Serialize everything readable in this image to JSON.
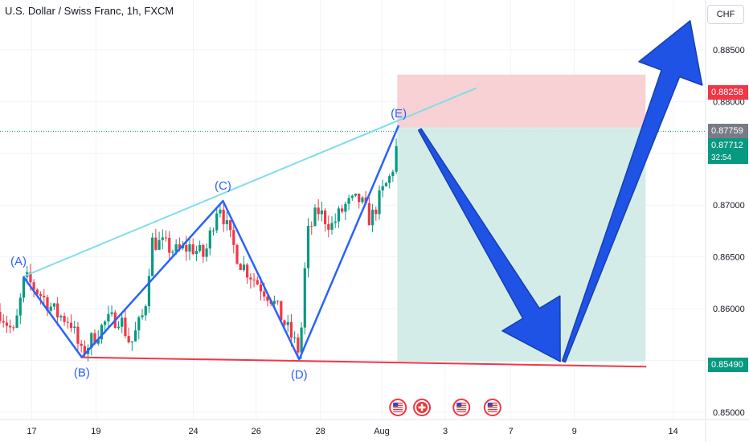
{
  "header": {
    "title": "U.S. Dollar / Swiss Franc, 1h, FXCM",
    "currency_button": "CHF"
  },
  "chart_data": {
    "type": "candlestick",
    "title": "U.S. Dollar / Swiss Franc, 1h, FXCM",
    "ylim": [
      0.8493,
      0.8898
    ],
    "xlim": [
      0,
      100
    ],
    "y_ticks": [
      "0.88500",
      "0.88000",
      "0.87500",
      "0.87000",
      "0.86500",
      "0.86000",
      "0.85500",
      "0.85000"
    ],
    "y_tick_values": [
      0.885,
      0.88,
      0.875,
      0.87,
      0.865,
      0.86,
      0.855,
      0.85
    ],
    "x_ticks": [
      {
        "label": "17",
        "x": 4.5
      },
      {
        "label": "19",
        "x": 13.6
      },
      {
        "label": "24",
        "x": 27.4
      },
      {
        "label": "26",
        "x": 36.3
      },
      {
        "label": "28",
        "x": 45.4
      },
      {
        "label": "Aug",
        "x": 54.1
      },
      {
        "label": "3",
        "x": 63.1
      },
      {
        "label": "7",
        "x": 72.4
      },
      {
        "label": "9",
        "x": 81.4
      },
      {
        "label": "14",
        "x": 95.4
      }
    ],
    "price_tags": {
      "stop": "0.88258",
      "close": "0.87759",
      "current": "0.87712",
      "countdown": "32:54",
      "target": "0.85490"
    },
    "price_tag_values": {
      "stop": 0.88258,
      "close": 0.87759,
      "current": 0.87712,
      "target": 0.8549
    },
    "candles_anchors": [
      [
        0,
        0.8597
      ],
      [
        2,
        0.8575
      ],
      [
        3.5,
        0.863
      ],
      [
        6,
        0.8612
      ],
      [
        8,
        0.8595
      ],
      [
        10,
        0.8588
      ],
      [
        11.5,
        0.8556
      ],
      [
        13,
        0.857
      ],
      [
        15,
        0.8587
      ],
      [
        17,
        0.8592
      ],
      [
        18.5,
        0.8565
      ],
      [
        20.5,
        0.8598
      ],
      [
        21.5,
        0.8665
      ],
      [
        23,
        0.8662
      ],
      [
        25,
        0.8655
      ],
      [
        27,
        0.866
      ],
      [
        29,
        0.865
      ],
      [
        31,
        0.8705
      ],
      [
        32.5,
        0.867
      ],
      [
        34,
        0.8645
      ],
      [
        36.5,
        0.8625
      ],
      [
        38.5,
        0.861
      ],
      [
        40,
        0.859
      ],
      [
        42.5,
        0.8557
      ],
      [
        43.5,
        0.867
      ],
      [
        45,
        0.8695
      ],
      [
        47,
        0.868
      ],
      [
        49,
        0.87
      ],
      [
        51,
        0.8705
      ],
      [
        52.5,
        0.8685
      ],
      [
        54,
        0.871
      ],
      [
        55.5,
        0.873
      ],
      [
        56.6,
        0.8771
      ]
    ],
    "pattern_points": [
      {
        "label": "(A)",
        "x": 3.3,
        "y": 0.8631
      },
      {
        "label": "(B)",
        "x": 11.6,
        "y": 0.8553
      },
      {
        "label": "(C)",
        "x": 31.6,
        "y": 0.8704
      },
      {
        "label": "(D)",
        "x": 42.4,
        "y": 0.8551
      },
      {
        "label": "(E)",
        "x": 56.5,
        "y": 0.8777
      }
    ],
    "upper_trendline": [
      [
        3.3,
        0.8631
      ],
      [
        67.5,
        0.8813
      ]
    ],
    "lower_trendline": [
      [
        11.6,
        0.8553
      ],
      [
        91.6,
        0.8544
      ]
    ],
    "position": {
      "x_start": 56.3,
      "x_end": 91.5,
      "entry": 0.8775,
      "stop": 0.8826,
      "target": 0.8549
    },
    "projection_arrows": [
      {
        "from": [
          59.5,
          0.8773
        ],
        "to": [
          79.4,
          0.8549
        ]
      },
      {
        "from": [
          79.9,
          0.8549
        ],
        "to": [
          97.8,
          0.8878
        ]
      }
    ],
    "event_icons": [
      {
        "flag": "us",
        "x": 56.4
      },
      {
        "flag": "ch",
        "x": 59.8
      },
      {
        "flag": "us",
        "x": 65.4
      },
      {
        "flag": "us",
        "x": 69.8
      }
    ],
    "colors": {
      "up_candle": "#089981",
      "down_candle": "#f23645",
      "pattern_line": "#2962ff",
      "upper_trendline": "#80deea",
      "lower_trendline": "#f23645",
      "stop_zone": "#f7c9cd",
      "target_zone": "#cfeae4",
      "arrow": "#1e53e5"
    }
  }
}
